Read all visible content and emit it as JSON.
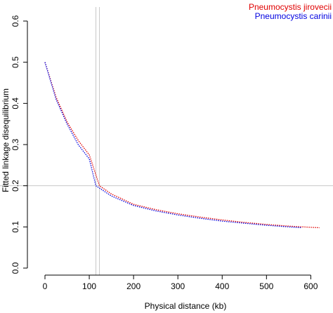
{
  "chart_data": {
    "type": "line",
    "xlabel": "Physical distance (kb)",
    "ylabel": "Fitted linkage disequilibrium",
    "xlim": [
      0,
      620
    ],
    "ylim": [
      0,
      0.6
    ],
    "xticks": [
      0,
      100,
      200,
      300,
      400,
      500,
      600
    ],
    "yticks": [
      0.0,
      0.1,
      0.2,
      0.3,
      0.4,
      0.5,
      0.6
    ],
    "xtick_labels": [
      "0",
      "100",
      "200",
      "300",
      "400",
      "500",
      "600"
    ],
    "ytick_labels": [
      "0.0",
      "0.1",
      "0.2",
      "0.3",
      "0.4",
      "0.5",
      "0.6"
    ],
    "legend_position": "top-right",
    "reference_lines": {
      "horizontal": [
        0.2
      ],
      "vertical": [
        115,
        123
      ]
    },
    "series": [
      {
        "name": "Pneumocystis jirovecii",
        "color": "#e00000",
        "x": [
          0,
          25,
          50,
          75,
          100,
          123,
          150,
          200,
          250,
          300,
          350,
          400,
          450,
          500,
          550,
          600,
          620
        ],
        "y": [
          0.5,
          0.415,
          0.355,
          0.31,
          0.275,
          0.2,
          0.18,
          0.155,
          0.142,
          0.132,
          0.124,
          0.117,
          0.111,
          0.106,
          0.102,
          0.099,
          0.098
        ]
      },
      {
        "name": "Pneumocystis carinii",
        "color": "#0000e0",
        "x": [
          0,
          25,
          50,
          75,
          100,
          115,
          150,
          200,
          250,
          300,
          350,
          400,
          450,
          500,
          550,
          580
        ],
        "y": [
          0.5,
          0.41,
          0.35,
          0.3,
          0.265,
          0.2,
          0.175,
          0.152,
          0.139,
          0.129,
          0.121,
          0.114,
          0.109,
          0.104,
          0.1,
          0.098
        ]
      }
    ]
  }
}
